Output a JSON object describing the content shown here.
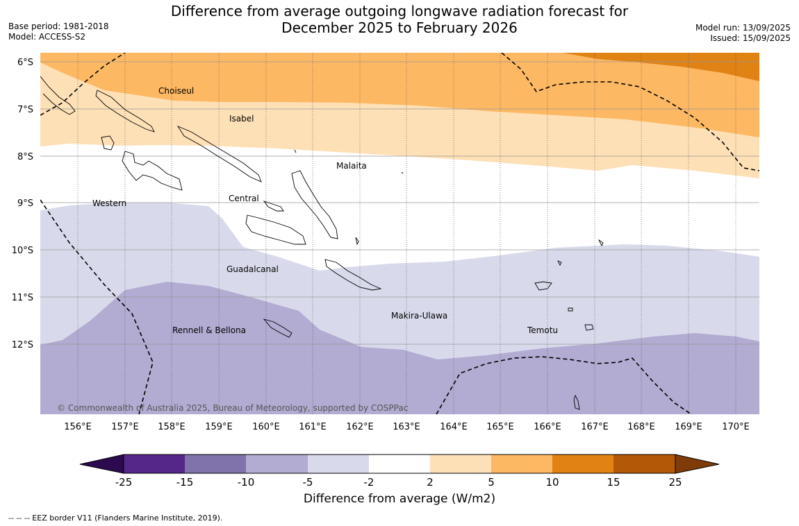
{
  "title": {
    "line1": "Difference from average outgoing longwave radiation forecast for",
    "line2": "December 2025 to February 2026"
  },
  "meta_left": {
    "base_period": "Base period: 1981-2018",
    "model": "Model: ACCESS-S2"
  },
  "meta_right": {
    "model_run": "Model run: 13/09/2025",
    "issued": "Issued: 15/09/2025"
  },
  "map": {
    "latitude_labels": [
      "6°S",
      "7°S",
      "8°S",
      "9°S",
      "10°S",
      "11°S",
      "12°S"
    ],
    "longitude_labels": [
      "156°E",
      "157°E",
      "158°E",
      "159°E",
      "160°E",
      "161°E",
      "162°E",
      "163°E",
      "164°E",
      "165°E",
      "166°E",
      "167°E",
      "168°E",
      "169°E",
      "170°E"
    ],
    "provinces": [
      {
        "name": "Choiseul"
      },
      {
        "name": "Isabel"
      },
      {
        "name": "Malaita"
      },
      {
        "name": "Western"
      },
      {
        "name": "Central"
      },
      {
        "name": "Guadalcanal"
      },
      {
        "name": "Rennell & Bellona"
      },
      {
        "name": "Makira-Ulawa"
      },
      {
        "name": "Temotu"
      }
    ],
    "copyright": "© Commonwealth of Australia 2025, Bureau of Meteorology, supported by COSPPac"
  },
  "colorbar": {
    "ticks": [
      "-25",
      "-15",
      "-10",
      "-5",
      "-2",
      "2",
      "5",
      "10",
      "15",
      "25"
    ],
    "colors": [
      "#2d0a4f",
      "#542788",
      "#8073ac",
      "#b2abd2",
      "#d8daeb",
      "#ffffff",
      "#fee0b6",
      "#fdb863",
      "#e08214",
      "#b35806",
      "#7f3b08"
    ],
    "title": "Difference from average (W/m2)"
  },
  "legend": {
    "eez": "--  --  -- EEZ border V11 (Flanders Marine Institute, 2019)."
  }
}
